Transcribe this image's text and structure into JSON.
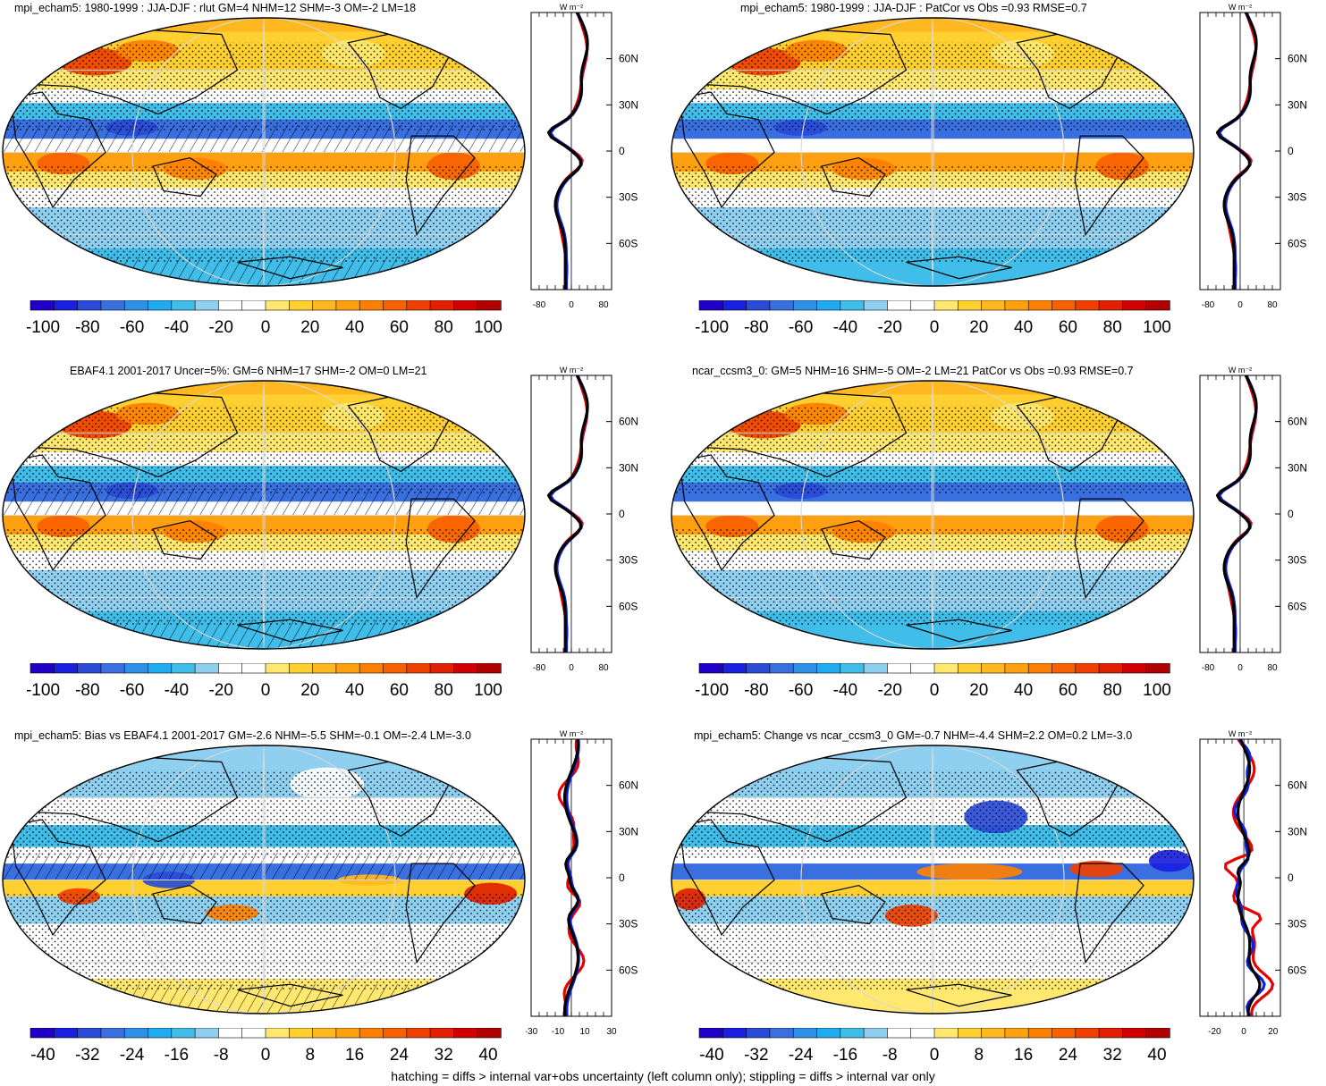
{
  "panels": [
    {
      "title": "mpi_echam5: 1980-1999 : JJA-DJF : rlut GM=4 NHM=12 SHM=-3 OM=-2 LM=18",
      "hatched": true,
      "kind": "mean",
      "profile": {
        "xticks": [
          "-80",
          "0",
          "80"
        ],
        "xmin": -100,
        "xmax": 100,
        "unit": "W m⁻²"
      },
      "colorbar": {
        "labels": [
          "-100",
          "-80",
          "-60",
          "-40",
          "-20",
          "0",
          "20",
          "40",
          "60",
          "80",
          "100"
        ]
      }
    },
    {
      "title": "mpi_echam5: 1980-1999 : JJA-DJF : PatCor vs Obs =0.93 RMSE=0.7",
      "hatched": false,
      "kind": "mean",
      "profile": {
        "xticks": [
          "-80",
          "0",
          "80"
        ],
        "xmin": -100,
        "xmax": 100,
        "unit": "W m⁻²"
      },
      "colorbar": {
        "labels": [
          "-100",
          "-80",
          "-60",
          "-40",
          "-20",
          "0",
          "20",
          "40",
          "60",
          "80",
          "100"
        ]
      }
    },
    {
      "title": "EBAF4.1 2001-2017 Uncer=5%: GM=6 NHM=17 SHM=-2 OM=0 LM=21",
      "hatched": true,
      "kind": "mean",
      "profile": {
        "xticks": [
          "-80",
          "0",
          "80"
        ],
        "xmin": -100,
        "xmax": 100,
        "unit": "W m⁻²"
      },
      "colorbar": {
        "labels": [
          "-100",
          "-80",
          "-60",
          "-40",
          "-20",
          "0",
          "20",
          "40",
          "60",
          "80",
          "100"
        ]
      }
    },
    {
      "title": "ncar_ccsm3_0: GM=5 NHM=16 SHM=-5 OM=-2 LM=21 PatCor vs Obs =0.93 RMSE=0.7",
      "hatched": false,
      "kind": "mean",
      "profile": {
        "xticks": [
          "-80",
          "0",
          "80"
        ],
        "xmin": -100,
        "xmax": 100,
        "unit": "W m⁻²"
      },
      "colorbar": {
        "labels": [
          "-100",
          "-80",
          "-60",
          "-40",
          "-20",
          "0",
          "20",
          "40",
          "60",
          "80",
          "100"
        ]
      }
    },
    {
      "title": "mpi_echam5: Bias vs EBAF4.1 2001-2017 GM=-2.6 NHM=-5.5 SHM=-0.1 OM=-2.4 LM=-3.0",
      "hatched": true,
      "kind": "bias",
      "profile": {
        "xticks": [
          "-30",
          "-10",
          "10",
          "30"
        ],
        "xmin": -30,
        "xmax": 30,
        "unit": "W m⁻²"
      },
      "colorbar": {
        "labels": [
          "-40",
          "-32",
          "-24",
          "-16",
          "-8",
          "0",
          "8",
          "16",
          "24",
          "32",
          "40"
        ]
      }
    },
    {
      "title": "mpi_echam5: Change vs ncar_ccsm3_0 GM=-0.7 NHM=-4.4 SHM=2.2 OM=0.2 LM=-3.0",
      "hatched": false,
      "kind": "change",
      "profile": {
        "xticks": [
          "-20",
          "0",
          "20"
        ],
        "xmin": -30,
        "xmax": 25,
        "unit": "W m⁻²"
      },
      "colorbar": {
        "labels": [
          "-40",
          "-32",
          "-24",
          "-16",
          "-8",
          "0",
          "8",
          "16",
          "24",
          "32",
          "40"
        ]
      }
    }
  ],
  "lat_labels": [
    "60N",
    "30N",
    "0",
    "30S",
    "60S"
  ],
  "palette": [
    "#2000c8",
    "#1a20e0",
    "#2a4bd8",
    "#3a6fe0",
    "#2f90e8",
    "#20aaf0",
    "#40bde8",
    "#8fd0f0",
    "#ffffff",
    "#ffffff",
    "#ffe870",
    "#ffd030",
    "#ffb820",
    "#ffa010",
    "#ff8000",
    "#f86000",
    "#f04000",
    "#e02000",
    "#d00000",
    "#b00000"
  ],
  "series_colors": {
    "model": "#e80000",
    "obs": "#1020e0",
    "other": "#000000"
  },
  "caption": "hatching = diffs > internal var+obs uncertainty (left column only); stippling = diffs > internal var only"
}
